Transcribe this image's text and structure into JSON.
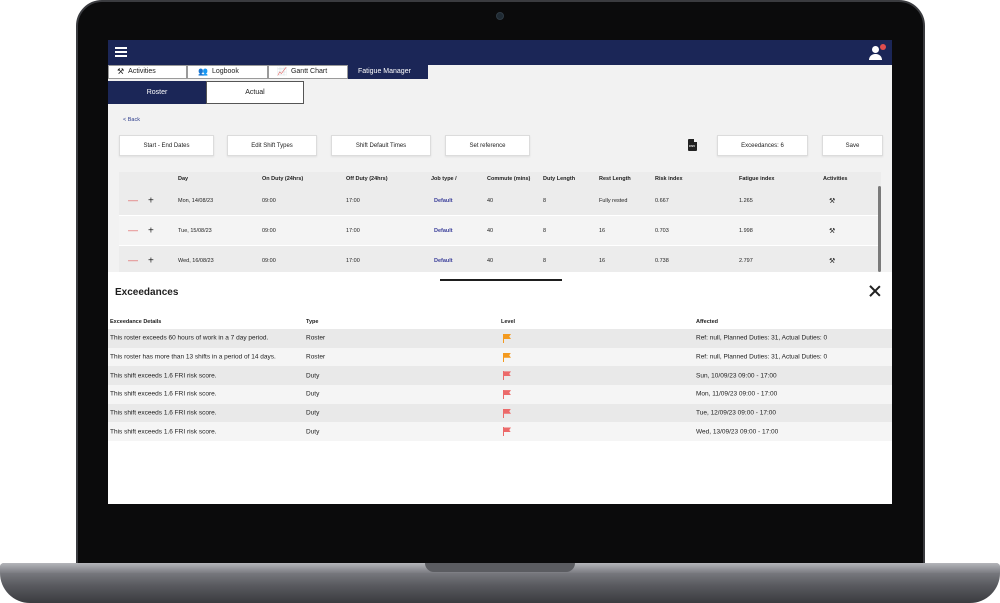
{
  "nav": {
    "tabs": [
      {
        "label": "Activities",
        "icon": "tools-icon"
      },
      {
        "label": "Logbook",
        "icon": "users-icon"
      },
      {
        "label": "Gantt Chart",
        "icon": "chart-icon"
      },
      {
        "label": "Fatigue Manager",
        "icon": ""
      }
    ],
    "active_tab": "Fatigue Manager"
  },
  "subtabs": [
    "Roster",
    "Actual"
  ],
  "back_label": "< Back",
  "toolbar": {
    "start_end": "Start - End Dates",
    "edit_shift": "Edit Shift Types",
    "shift_default": "Shift Default Times",
    "set_reference": "Set reference",
    "csv": "CSV",
    "exceedances": "Exceedances: 6",
    "save": "Save"
  },
  "roster": {
    "headers": [
      "Day",
      "On Duty (24hrs)",
      "Off Duty (24hrs)",
      "Job type /",
      "Commute (mins)",
      "Duty Length",
      "Rest Length",
      "Risk index",
      "Fatigue index",
      "Activities"
    ],
    "rows": [
      {
        "day": "Mon, 14/08/23",
        "on": "09:00",
        "off": "17:00",
        "job": "Default",
        "commute": "40",
        "duty": "8",
        "rest": "Fully rested",
        "risk": "0.667",
        "fatigue": "1.265"
      },
      {
        "day": "Tue, 15/08/23",
        "on": "09:00",
        "off": "17:00",
        "job": "Default",
        "commute": "40",
        "duty": "8",
        "rest": "16",
        "risk": "0.703",
        "fatigue": "1.998"
      },
      {
        "day": "Wed, 16/08/23",
        "on": "09:00",
        "off": "17:00",
        "job": "Default",
        "commute": "40",
        "duty": "8",
        "rest": "16",
        "risk": "0.738",
        "fatigue": "2.797"
      }
    ]
  },
  "exceedances": {
    "title": "Exceedances",
    "headers": [
      "Exceedance Details",
      "Type",
      "Level",
      "Affected"
    ],
    "rows": [
      {
        "details": "This roster exceeds 60 hours of work in a 7 day period.",
        "type": "Roster",
        "level": "orange",
        "affected": "Ref: null, Planned Duties: 31, Actual Duties: 0"
      },
      {
        "details": "This roster has more than 13 shifts in a period of 14 days.",
        "type": "Roster",
        "level": "orange",
        "affected": "Ref: null, Planned Duties: 31, Actual Duties: 0"
      },
      {
        "details": "This shift exceeds 1.6 FRI risk score.",
        "type": "Duty",
        "level": "red",
        "affected": "Sun, 10/09/23 09:00 - 17:00"
      },
      {
        "details": "This shift exceeds 1.6 FRI risk score.",
        "type": "Duty",
        "level": "red",
        "affected": "Mon, 11/09/23 09:00 - 17:00"
      },
      {
        "details": "This shift exceeds 1.6 FRI risk score.",
        "type": "Duty",
        "level": "red",
        "affected": "Tue, 12/09/23 09:00 - 17:00"
      },
      {
        "details": "This shift exceeds 1.6 FRI risk score.",
        "type": "Duty",
        "level": "red",
        "affected": "Wed, 13/09/23 09:00 - 17:00"
      }
    ]
  },
  "colors": {
    "navy": "#1b2657",
    "flag_orange": "#f39a1f",
    "flag_red": "#ec6a6a",
    "minus_red": "#e26a6a"
  }
}
